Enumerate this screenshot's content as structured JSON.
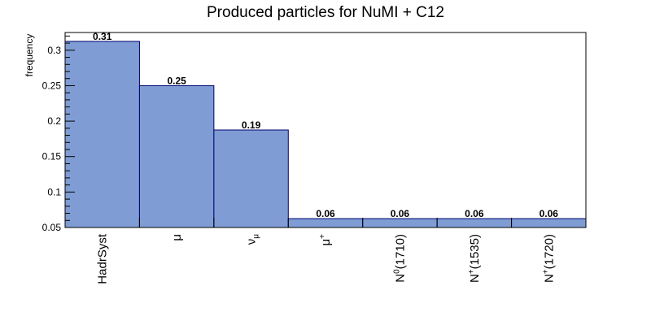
{
  "chart_data": {
    "type": "bar",
    "title": "Produced particles for NuMI + C12",
    "xlabel": "",
    "ylabel": "frequency",
    "ylim": [
      0.05,
      0.325
    ],
    "yticks": [
      "0.05",
      "0.1",
      "0.15",
      "0.2",
      "0.25",
      "0.3"
    ],
    "categories": [
      "HadrSyst",
      "μ",
      "ν_μ",
      "μ⁺",
      "N⁰(1710)",
      "N⁺(1535)",
      "N⁺(1720)"
    ],
    "category_parts": [
      {
        "base": "HadrSyst",
        "sup": "",
        "sub": "",
        "rest": ""
      },
      {
        "base": "μ",
        "sup": "",
        "sub": "",
        "rest": ""
      },
      {
        "base": "ν",
        "sup": "",
        "sub": "μ",
        "rest": ""
      },
      {
        "base": "μ",
        "sup": "+",
        "sub": "",
        "rest": ""
      },
      {
        "base": "N",
        "sup": "0",
        "sub": "",
        "rest": "(1710)"
      },
      {
        "base": "N",
        "sup": "+",
        "sub": "",
        "rest": "(1535)"
      },
      {
        "base": "N",
        "sup": "+",
        "sub": "",
        "rest": "(1720)"
      }
    ],
    "values": [
      0.3125,
      0.25,
      0.1875,
      0.0625,
      0.0625,
      0.0625,
      0.0625
    ],
    "value_labels": [
      "0.31",
      "0.25",
      "0.19",
      "0.06",
      "0.06",
      "0.06",
      "0.06"
    ],
    "grid": false,
    "colors": {
      "bar_fill": "#7f9dd4",
      "bar_edge": "#00006e",
      "frame": "#000000"
    }
  }
}
